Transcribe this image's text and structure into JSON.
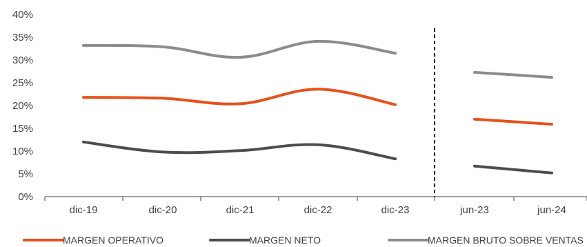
{
  "chart_data": {
    "type": "line",
    "categories": [
      "dic-19",
      "dic-20",
      "dic-21",
      "dic-22",
      "dic-23",
      "jun-23",
      "jun-24"
    ],
    "ylim": [
      0,
      40
    ],
    "yticks": [
      "0%",
      "5%",
      "10%",
      "15%",
      "20%",
      "25%",
      "30%",
      "35%",
      "40%"
    ],
    "y_tick_values": [
      0,
      5,
      10,
      15,
      20,
      25,
      30,
      35,
      40
    ],
    "grid": false,
    "legend_position": "bottom",
    "divider": "dashed line between dic-23 and jun-23",
    "segments": [
      [
        0,
        4
      ],
      [
        5,
        6
      ]
    ],
    "series": [
      {
        "name": "MARGEN OPERATIVO",
        "color": "#E8501A",
        "values": [
          21.8,
          21.6,
          20.4,
          23.6,
          20.2,
          17.0,
          15.9
        ]
      },
      {
        "name": "MARGEN NETO",
        "color": "#4D4D4D",
        "values": [
          12.0,
          9.8,
          10.1,
          11.4,
          8.3,
          6.7,
          5.2
        ]
      },
      {
        "name": "MARGEN BRUTO SOBRE VENTAS",
        "color": "#8C8C8C",
        "values": [
          33.2,
          32.9,
          30.6,
          34.1,
          31.5,
          27.3,
          26.2
        ]
      }
    ]
  }
}
